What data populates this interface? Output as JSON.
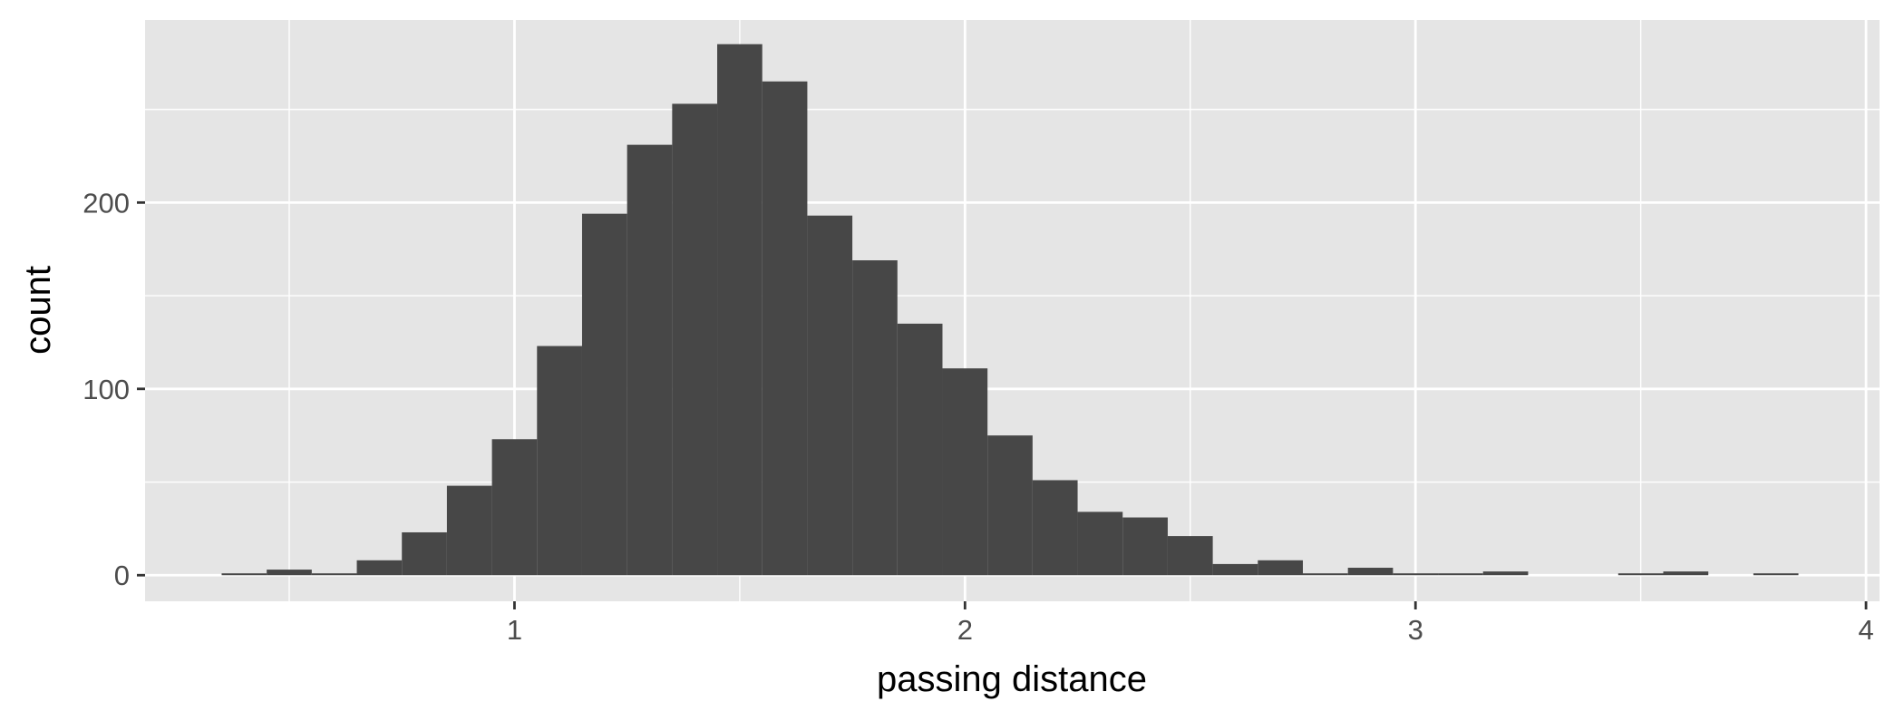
{
  "chart_data": {
    "type": "bar",
    "histogram": true,
    "xlabel": "passing distance",
    "ylabel": "count",
    "xlim": [
      0.18,
      4.03
    ],
    "ylim": [
      -14,
      298
    ],
    "x_ticks": [
      1,
      2,
      3,
      4
    ],
    "y_ticks": [
      0,
      100,
      200
    ],
    "x_minor_ticks": [
      0.5,
      1.5,
      2.5,
      3.5
    ],
    "y_minor_ticks": [
      50,
      150,
      250
    ],
    "grid": true,
    "legend": "none",
    "bar_color": "#474747",
    "panel_color": "#e5e5e5",
    "grid_color": "#ffffff",
    "bin_width": 0.1,
    "bins": [
      {
        "x0": 0.35,
        "x1": 0.45,
        "count": 1
      },
      {
        "x0": 0.45,
        "x1": 0.55,
        "count": 3
      },
      {
        "x0": 0.55,
        "x1": 0.65,
        "count": 1
      },
      {
        "x0": 0.65,
        "x1": 0.75,
        "count": 8
      },
      {
        "x0": 0.75,
        "x1": 0.85,
        "count": 23
      },
      {
        "x0": 0.85,
        "x1": 0.95,
        "count": 48
      },
      {
        "x0": 0.95,
        "x1": 1.05,
        "count": 73
      },
      {
        "x0": 1.05,
        "x1": 1.15,
        "count": 123
      },
      {
        "x0": 1.15,
        "x1": 1.25,
        "count": 194
      },
      {
        "x0": 1.25,
        "x1": 1.35,
        "count": 231
      },
      {
        "x0": 1.35,
        "x1": 1.45,
        "count": 253
      },
      {
        "x0": 1.45,
        "x1": 1.55,
        "count": 285
      },
      {
        "x0": 1.55,
        "x1": 1.65,
        "count": 265
      },
      {
        "x0": 1.65,
        "x1": 1.75,
        "count": 193
      },
      {
        "x0": 1.75,
        "x1": 1.85,
        "count": 169
      },
      {
        "x0": 1.85,
        "x1": 1.95,
        "count": 135
      },
      {
        "x0": 1.95,
        "x1": 2.05,
        "count": 111
      },
      {
        "x0": 2.05,
        "x1": 2.15,
        "count": 75
      },
      {
        "x0": 2.15,
        "x1": 2.25,
        "count": 51
      },
      {
        "x0": 2.25,
        "x1": 2.35,
        "count": 34
      },
      {
        "x0": 2.35,
        "x1": 2.45,
        "count": 31
      },
      {
        "x0": 2.45,
        "x1": 2.55,
        "count": 21
      },
      {
        "x0": 2.55,
        "x1": 2.65,
        "count": 6
      },
      {
        "x0": 2.65,
        "x1": 2.75,
        "count": 8
      },
      {
        "x0": 2.75,
        "x1": 2.85,
        "count": 1
      },
      {
        "x0": 2.85,
        "x1": 2.95,
        "count": 4
      },
      {
        "x0": 2.95,
        "x1": 3.05,
        "count": 1
      },
      {
        "x0": 3.05,
        "x1": 3.15,
        "count": 1
      },
      {
        "x0": 3.15,
        "x1": 3.25,
        "count": 2
      },
      {
        "x0": 3.45,
        "x1": 3.55,
        "count": 1
      },
      {
        "x0": 3.55,
        "x1": 3.65,
        "count": 2
      },
      {
        "x0": 3.75,
        "x1": 3.85,
        "count": 1
      }
    ]
  }
}
